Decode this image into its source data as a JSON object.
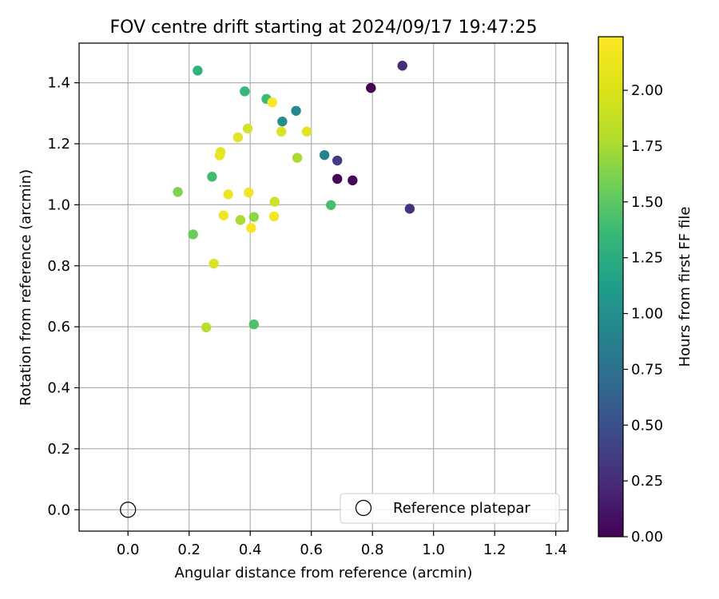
{
  "chart_data": {
    "type": "scatter",
    "title": "FOV centre drift starting at 2024/09/17 19:47:25",
    "xlabel": "Angular distance from reference (arcmin)",
    "ylabel": "Rotation from reference (arcmin)",
    "xlim": [
      -0.16,
      1.44
    ],
    "ylim": [
      -0.07,
      1.53
    ],
    "xticks": [
      "0.0",
      "0.2",
      "0.4",
      "0.6",
      "0.8",
      "1.0",
      "1.2",
      "1.4"
    ],
    "yticks": [
      "0.0",
      "0.2",
      "0.4",
      "0.6",
      "0.8",
      "1.0",
      "1.2",
      "1.4"
    ],
    "grid": true,
    "legend": {
      "placement": "lower-right",
      "entries": [
        {
          "label": "Reference platepar",
          "marker": "open-circle"
        }
      ]
    },
    "reference_point": {
      "x": 0.0,
      "y": 0.0
    },
    "colorbar": {
      "label": "Hours from first FF file",
      "colormap": "viridis",
      "range": [
        0.0,
        2.24
      ],
      "ticks": [
        "0.00",
        "0.25",
        "0.50",
        "0.75",
        "1.00",
        "1.25",
        "1.50",
        "1.75",
        "2.00"
      ]
    },
    "series": [
      {
        "points": [
          {
            "x": 0.795,
            "y": 1.383,
            "c": 0.0
          },
          {
            "x": 0.685,
            "y": 1.085,
            "c": 0.02
          },
          {
            "x": 0.735,
            "y": 1.08,
            "c": 0.05
          },
          {
            "x": 0.898,
            "y": 1.456,
            "c": 0.28
          },
          {
            "x": 0.922,
            "y": 0.987,
            "c": 0.32
          },
          {
            "x": 0.685,
            "y": 1.145,
            "c": 0.4
          },
          {
            "x": 0.643,
            "y": 1.163,
            "c": 1.0
          },
          {
            "x": 0.55,
            "y": 1.308,
            "c": 1.05
          },
          {
            "x": 0.505,
            "y": 1.273,
            "c": 1.1
          },
          {
            "x": 0.228,
            "y": 1.44,
            "c": 1.45
          },
          {
            "x": 0.382,
            "y": 1.372,
            "c": 1.5
          },
          {
            "x": 0.453,
            "y": 1.347,
            "c": 1.52
          },
          {
            "x": 0.275,
            "y": 1.092,
            "c": 1.55
          },
          {
            "x": 0.664,
            "y": 0.999,
            "c": 1.57
          },
          {
            "x": 0.412,
            "y": 0.608,
            "c": 1.6
          },
          {
            "x": 0.213,
            "y": 0.903,
            "c": 1.72
          },
          {
            "x": 0.163,
            "y": 1.042,
            "c": 1.8
          },
          {
            "x": 0.412,
            "y": 0.96,
            "c": 1.85
          },
          {
            "x": 0.554,
            "y": 1.154,
            "c": 1.95
          },
          {
            "x": 0.368,
            "y": 0.95,
            "c": 1.95
          },
          {
            "x": 0.256,
            "y": 0.598,
            "c": 2.0
          },
          {
            "x": 0.48,
            "y": 1.01,
            "c": 2.08
          },
          {
            "x": 0.281,
            "y": 0.807,
            "c": 2.12
          },
          {
            "x": 0.392,
            "y": 1.25,
            "c": 2.1
          },
          {
            "x": 0.502,
            "y": 1.24,
            "c": 2.12
          },
          {
            "x": 0.585,
            "y": 1.24,
            "c": 2.14
          },
          {
            "x": 0.36,
            "y": 1.221,
            "c": 2.15
          },
          {
            "x": 0.303,
            "y": 1.173,
            "c": 2.16
          },
          {
            "x": 0.3,
            "y": 1.162,
            "c": 2.17
          },
          {
            "x": 0.328,
            "y": 1.034,
            "c": 2.18
          },
          {
            "x": 0.395,
            "y": 1.04,
            "c": 2.19
          },
          {
            "x": 0.313,
            "y": 0.965,
            "c": 2.2
          },
          {
            "x": 0.478,
            "y": 0.962,
            "c": 2.21
          },
          {
            "x": 0.403,
            "y": 0.924,
            "c": 2.22
          },
          {
            "x": 0.472,
            "y": 1.336,
            "c": 2.23
          }
        ]
      }
    ]
  }
}
